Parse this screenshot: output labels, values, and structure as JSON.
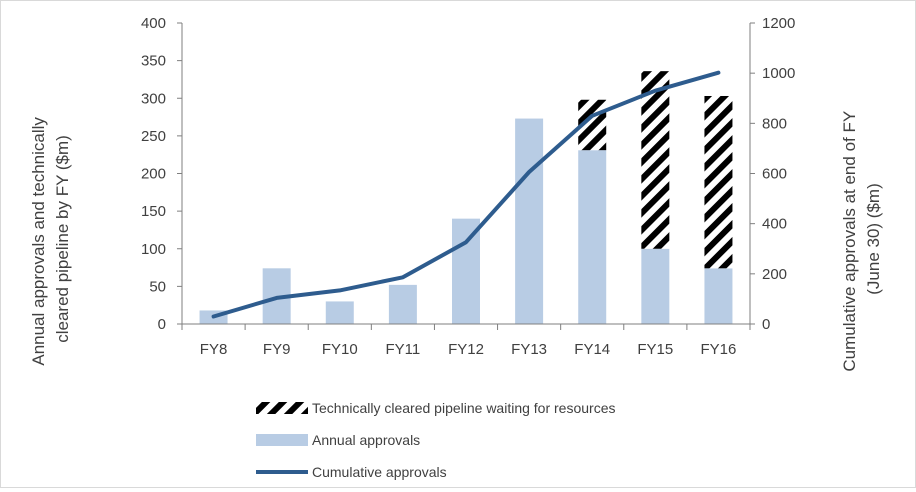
{
  "chart_data": {
    "type": "bar",
    "title": "",
    "categories": [
      "FY8",
      "FY9",
      "FY10",
      "FY11",
      "FY12",
      "FY13",
      "FY14",
      "FY15",
      "FY16"
    ],
    "series": [
      {
        "name": "Annual approvals",
        "type": "bar",
        "axis": "left",
        "values": [
          18,
          74,
          30,
          52,
          140,
          273,
          231,
          100,
          74
        ],
        "color": "#b8cce4"
      },
      {
        "name": "Technically cleared pipeline waiting for resources",
        "type": "stacked-bar-hatched",
        "axis": "left",
        "values": [
          0,
          0,
          0,
          0,
          0,
          0,
          67,
          236,
          229
        ],
        "color": "#000000"
      },
      {
        "name": "Cumulative approvals",
        "type": "line",
        "axis": "right",
        "values": [
          30,
          104,
          134,
          186,
          326,
          606,
          830,
          930,
          1002
        ],
        "color": "#2e5c8e"
      }
    ],
    "left_axis": {
      "label": "Annual approvals and technically cleared pipeline by FY ($m)",
      "ylim": [
        0,
        400
      ],
      "ticks": [
        0,
        50,
        100,
        150,
        200,
        250,
        300,
        350,
        400
      ]
    },
    "right_axis": {
      "label": "Cumulative approvals at end of FY (June 30) ($m)",
      "ylim": [
        0,
        1200
      ],
      "ticks": [
        0,
        200,
        400,
        600,
        800,
        1000,
        1200
      ]
    },
    "xlabel": "",
    "grid": false,
    "legend_position": "bottom",
    "legend_order": [
      "Technically cleared pipeline waiting for resources",
      "Annual approvals",
      "Cumulative approvals"
    ]
  }
}
